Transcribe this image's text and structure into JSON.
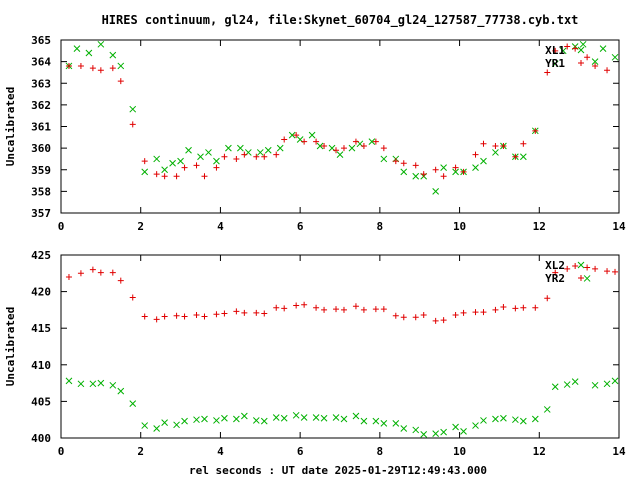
{
  "title": "HIRES continuum, gl24, file:Skynet_60704_gl24_127587_77738.cyb.txt",
  "xlabel": "rel seconds : UT date 2025-01-29T12:49:43.000",
  "colors": {
    "red": "#e00000",
    "green": "#00b000"
  },
  "chart_data": [
    {
      "type": "scatter",
      "ylabel": "Uncalibrated",
      "xlim": [
        0,
        14
      ],
      "ylim": [
        357,
        365
      ],
      "xticks": [
        0,
        2,
        4,
        6,
        8,
        10,
        12,
        14
      ],
      "yticks": [
        357,
        358,
        359,
        360,
        361,
        362,
        363,
        364,
        365
      ],
      "legend_position": "top-right",
      "series": [
        {
          "name": "XL1",
          "marker": "x",
          "color": "#00b000",
          "points": [
            [
              0.2,
              363.8
            ],
            [
              0.4,
              364.6
            ],
            [
              0.7,
              364.4
            ],
            [
              1.0,
              364.8
            ],
            [
              1.3,
              364.3
            ],
            [
              1.5,
              363.8
            ],
            [
              1.8,
              361.8
            ],
            [
              2.1,
              358.9
            ],
            [
              2.4,
              359.5
            ],
            [
              2.6,
              359.0
            ],
            [
              2.8,
              359.3
            ],
            [
              3.0,
              359.4
            ],
            [
              3.2,
              359.9
            ],
            [
              3.5,
              359.6
            ],
            [
              3.7,
              359.8
            ],
            [
              3.9,
              359.4
            ],
            [
              4.2,
              360.0
            ],
            [
              4.5,
              360.0
            ],
            [
              4.7,
              359.8
            ],
            [
              5.0,
              359.8
            ],
            [
              5.2,
              359.9
            ],
            [
              5.5,
              360.0
            ],
            [
              5.8,
              360.6
            ],
            [
              6.0,
              360.4
            ],
            [
              6.3,
              360.6
            ],
            [
              6.5,
              360.1
            ],
            [
              6.8,
              360.0
            ],
            [
              7.0,
              359.7
            ],
            [
              7.3,
              360.0
            ],
            [
              7.5,
              360.2
            ],
            [
              7.8,
              360.3
            ],
            [
              8.1,
              359.5
            ],
            [
              8.4,
              359.5
            ],
            [
              8.6,
              358.9
            ],
            [
              8.9,
              358.7
            ],
            [
              9.1,
              358.7
            ],
            [
              9.4,
              358.0
            ],
            [
              9.6,
              359.1
            ],
            [
              9.9,
              358.9
            ],
            [
              10.1,
              358.9
            ],
            [
              10.4,
              359.1
            ],
            [
              10.6,
              359.4
            ],
            [
              10.9,
              359.8
            ],
            [
              11.1,
              360.1
            ],
            [
              11.4,
              359.6
            ],
            [
              11.6,
              359.6
            ],
            [
              11.9,
              360.8
            ],
            [
              12.4,
              363.9
            ],
            [
              12.6,
              364.5
            ],
            [
              12.9,
              364.7
            ],
            [
              13.1,
              364.8
            ],
            [
              13.4,
              364.0
            ],
            [
              13.6,
              364.6
            ],
            [
              13.9,
              364.2
            ]
          ]
        },
        {
          "name": "YR1",
          "marker": "+",
          "color": "#e00000",
          "points": [
            [
              0.2,
              363.8
            ],
            [
              0.5,
              363.8
            ],
            [
              0.8,
              363.7
            ],
            [
              1.0,
              363.6
            ],
            [
              1.3,
              363.7
            ],
            [
              1.5,
              363.1
            ],
            [
              1.8,
              361.1
            ],
            [
              2.1,
              359.4
            ],
            [
              2.4,
              358.8
            ],
            [
              2.6,
              358.7
            ],
            [
              2.9,
              358.7
            ],
            [
              3.1,
              359.1
            ],
            [
              3.4,
              359.2
            ],
            [
              3.6,
              358.7
            ],
            [
              3.9,
              359.1
            ],
            [
              4.1,
              359.6
            ],
            [
              4.4,
              359.5
            ],
            [
              4.6,
              359.7
            ],
            [
              4.9,
              359.6
            ],
            [
              5.1,
              359.6
            ],
            [
              5.4,
              359.7
            ],
            [
              5.6,
              360.4
            ],
            [
              5.9,
              360.6
            ],
            [
              6.1,
              360.3
            ],
            [
              6.4,
              360.3
            ],
            [
              6.6,
              360.1
            ],
            [
              6.9,
              359.9
            ],
            [
              7.1,
              360.0
            ],
            [
              7.4,
              360.3
            ],
            [
              7.6,
              360.1
            ],
            [
              7.9,
              360.3
            ],
            [
              8.1,
              360.0
            ],
            [
              8.4,
              359.4
            ],
            [
              8.6,
              359.3
            ],
            [
              8.9,
              359.2
            ],
            [
              9.1,
              358.8
            ],
            [
              9.4,
              359.0
            ],
            [
              9.6,
              358.7
            ],
            [
              9.9,
              359.1
            ],
            [
              10.1,
              358.9
            ],
            [
              10.4,
              359.7
            ],
            [
              10.6,
              360.2
            ],
            [
              10.9,
              360.1
            ],
            [
              11.1,
              360.1
            ],
            [
              11.4,
              359.6
            ],
            [
              11.6,
              360.2
            ],
            [
              11.9,
              360.8
            ],
            [
              12.2,
              363.5
            ],
            [
              12.4,
              364.5
            ],
            [
              12.7,
              364.7
            ],
            [
              12.9,
              364.6
            ],
            [
              13.2,
              364.2
            ],
            [
              13.4,
              363.8
            ],
            [
              13.7,
              363.6
            ]
          ]
        }
      ]
    },
    {
      "type": "scatter",
      "ylabel": "Uncalibrated",
      "xlim": [
        0,
        14
      ],
      "ylim": [
        400,
        425
      ],
      "xticks": [
        0,
        2,
        4,
        6,
        8,
        10,
        12,
        14
      ],
      "yticks": [
        400,
        405,
        410,
        415,
        420,
        425
      ],
      "legend_position": "top-right",
      "series": [
        {
          "name": "XL2",
          "marker": "x",
          "color": "#00b000",
          "points": [
            [
              0.2,
              407.8
            ],
            [
              0.5,
              407.4
            ],
            [
              0.8,
              407.4
            ],
            [
              1.0,
              407.5
            ],
            [
              1.3,
              407.2
            ],
            [
              1.5,
              406.4
            ],
            [
              1.8,
              404.7
            ],
            [
              2.1,
              401.7
            ],
            [
              2.4,
              401.3
            ],
            [
              2.6,
              402.1
            ],
            [
              2.9,
              401.8
            ],
            [
              3.1,
              402.3
            ],
            [
              3.4,
              402.5
            ],
            [
              3.6,
              402.6
            ],
            [
              3.9,
              402.4
            ],
            [
              4.1,
              402.7
            ],
            [
              4.4,
              402.6
            ],
            [
              4.6,
              403.0
            ],
            [
              4.9,
              402.4
            ],
            [
              5.1,
              402.3
            ],
            [
              5.4,
              402.8
            ],
            [
              5.6,
              402.7
            ],
            [
              5.9,
              403.1
            ],
            [
              6.1,
              402.8
            ],
            [
              6.4,
              402.8
            ],
            [
              6.6,
              402.7
            ],
            [
              6.9,
              402.8
            ],
            [
              7.1,
              402.6
            ],
            [
              7.4,
              403.0
            ],
            [
              7.6,
              402.3
            ],
            [
              7.9,
              402.3
            ],
            [
              8.1,
              402.0
            ],
            [
              8.4,
              402.0
            ],
            [
              8.6,
              401.3
            ],
            [
              8.9,
              401.1
            ],
            [
              9.1,
              400.5
            ],
            [
              9.4,
              400.6
            ],
            [
              9.6,
              400.8
            ],
            [
              9.9,
              401.5
            ],
            [
              10.1,
              400.9
            ],
            [
              10.4,
              401.7
            ],
            [
              10.6,
              402.4
            ],
            [
              10.9,
              402.6
            ],
            [
              11.1,
              402.7
            ],
            [
              11.4,
              402.5
            ],
            [
              11.6,
              402.3
            ],
            [
              11.9,
              402.6
            ],
            [
              12.2,
              403.9
            ],
            [
              12.4,
              407.0
            ],
            [
              12.7,
              407.3
            ],
            [
              12.9,
              407.7
            ],
            [
              13.2,
              421.8
            ],
            [
              13.4,
              407.2
            ],
            [
              13.7,
              407.4
            ],
            [
              13.9,
              407.8
            ]
          ]
        },
        {
          "name": "YR2",
          "marker": "+",
          "color": "#e00000",
          "points": [
            [
              0.2,
              422.0
            ],
            [
              0.5,
              422.5
            ],
            [
              0.8,
              423.0
            ],
            [
              1.0,
              422.6
            ],
            [
              1.3,
              422.6
            ],
            [
              1.5,
              421.5
            ],
            [
              1.8,
              419.2
            ],
            [
              2.1,
              416.6
            ],
            [
              2.4,
              416.2
            ],
            [
              2.6,
              416.6
            ],
            [
              2.9,
              416.7
            ],
            [
              3.1,
              416.6
            ],
            [
              3.4,
              416.8
            ],
            [
              3.6,
              416.6
            ],
            [
              3.9,
              416.9
            ],
            [
              4.1,
              417.0
            ],
            [
              4.4,
              417.3
            ],
            [
              4.6,
              417.1
            ],
            [
              4.9,
              417.1
            ],
            [
              5.1,
              417.0
            ],
            [
              5.4,
              417.8
            ],
            [
              5.6,
              417.7
            ],
            [
              5.9,
              418.1
            ],
            [
              6.1,
              418.2
            ],
            [
              6.4,
              417.8
            ],
            [
              6.6,
              417.5
            ],
            [
              6.9,
              417.6
            ],
            [
              7.1,
              417.5
            ],
            [
              7.4,
              418.0
            ],
            [
              7.6,
              417.5
            ],
            [
              7.9,
              417.6
            ],
            [
              8.1,
              417.6
            ],
            [
              8.4,
              416.7
            ],
            [
              8.6,
              416.5
            ],
            [
              8.9,
              416.5
            ],
            [
              9.1,
              416.8
            ],
            [
              9.4,
              416.0
            ],
            [
              9.6,
              416.1
            ],
            [
              9.9,
              416.8
            ],
            [
              10.1,
              417.1
            ],
            [
              10.4,
              417.2
            ],
            [
              10.6,
              417.2
            ],
            [
              10.9,
              417.5
            ],
            [
              11.1,
              417.9
            ],
            [
              11.4,
              417.7
            ],
            [
              11.6,
              417.8
            ],
            [
              11.9,
              417.8
            ],
            [
              12.2,
              419.1
            ],
            [
              12.4,
              422.6
            ],
            [
              12.7,
              423.1
            ],
            [
              12.9,
              423.5
            ],
            [
              13.2,
              423.3
            ],
            [
              13.4,
              423.1
            ],
            [
              13.7,
              422.8
            ],
            [
              13.9,
              422.7
            ]
          ]
        }
      ]
    }
  ]
}
